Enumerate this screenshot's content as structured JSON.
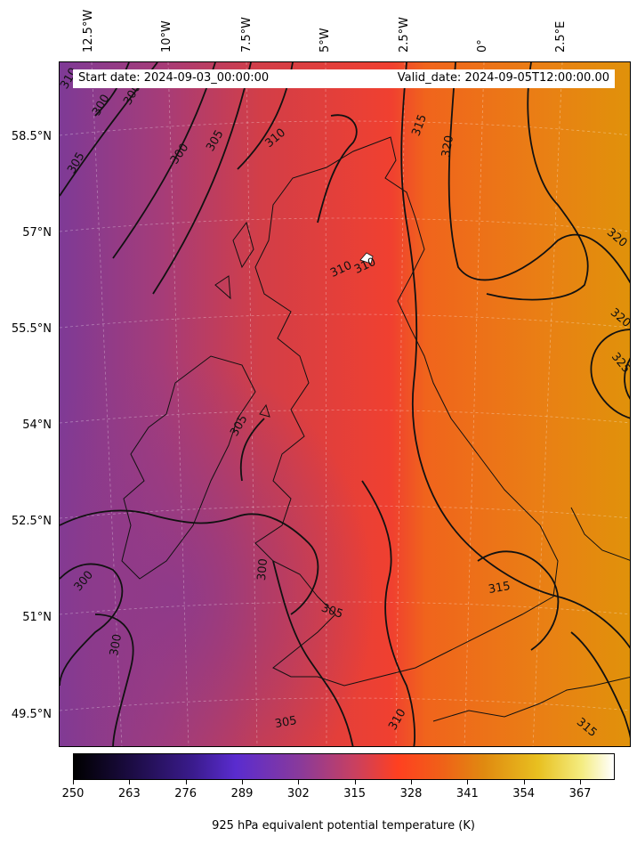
{
  "header": {
    "start_date": "Start date: 2024-09-03_00:00:00",
    "valid_date": "Valid_date: 2024-09-05T12:00:00.00"
  },
  "axes": {
    "lon_labels": [
      "12.5°W",
      "10°W",
      "7.5°W",
      "5°W",
      "2.5°W",
      "0°",
      "2.5°E"
    ],
    "lat_labels": [
      "58.5°N",
      "57°N",
      "55.5°N",
      "54°N",
      "52.5°N",
      "51°N",
      "49.5°N"
    ]
  },
  "colorbar": {
    "label": "925 hPa equivalent potential temperature (K)",
    "ticks": [
      "250",
      "263",
      "276",
      "289",
      "302",
      "315",
      "328",
      "341",
      "354",
      "367"
    ]
  },
  "contour_labels": [
    "310",
    "300",
    "300",
    "305",
    "300",
    "305",
    "310",
    "315",
    "320",
    "320",
    "320",
    "325",
    "310",
    "310",
    "305",
    "300",
    "300",
    "300",
    "305",
    "315",
    "315",
    "310",
    "305"
  ],
  "colors": {
    "cold": "#7e3a96",
    "mid": "#d83e3c",
    "warm": "#ee6a1c",
    "hot": "#e2900a"
  }
}
